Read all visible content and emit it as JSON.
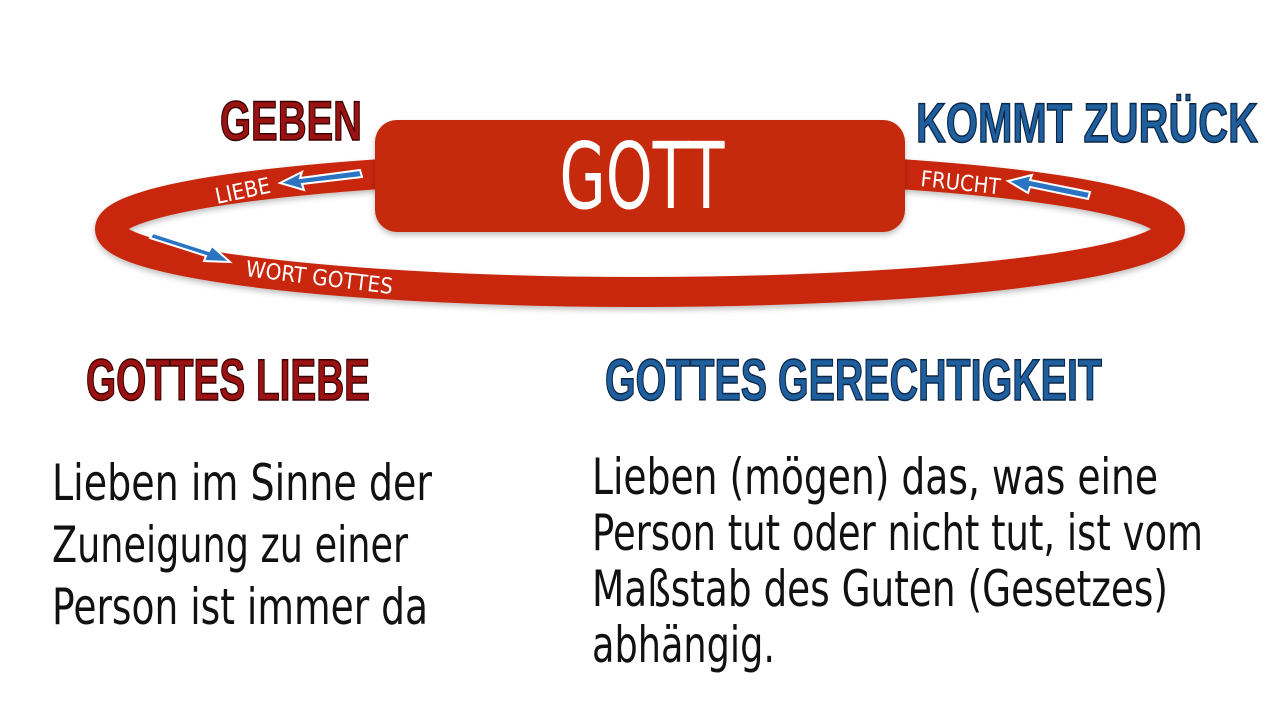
{
  "diagram": {
    "center_label": "GOTT",
    "give_label": "GEBEN",
    "return_label": "KOMMT ZURÜCK",
    "ring_labels": {
      "love": "LIEBE",
      "fruit": "FRUCHT",
      "word": "WORT GOTTES"
    },
    "colors": {
      "ring": "#c8260a",
      "box": "#c62a0e",
      "left_title": "#9a1212",
      "right_title": "#1f5f9e",
      "arrows": "#2b74c4"
    }
  },
  "left": {
    "title": "GOTTES LIEBE",
    "lines": [
      "Lieben im Sinne der",
      "Zuneigung zu einer",
      "Person ist immer da"
    ]
  },
  "right": {
    "title": "GOTTES GERECHTIGKEIT",
    "lines": [
      "Lieben (mögen) das, was eine",
      "Person tut oder nicht tut, ist vom",
      "Maßstab des Guten (Gesetzes)",
      "abhängig."
    ]
  }
}
